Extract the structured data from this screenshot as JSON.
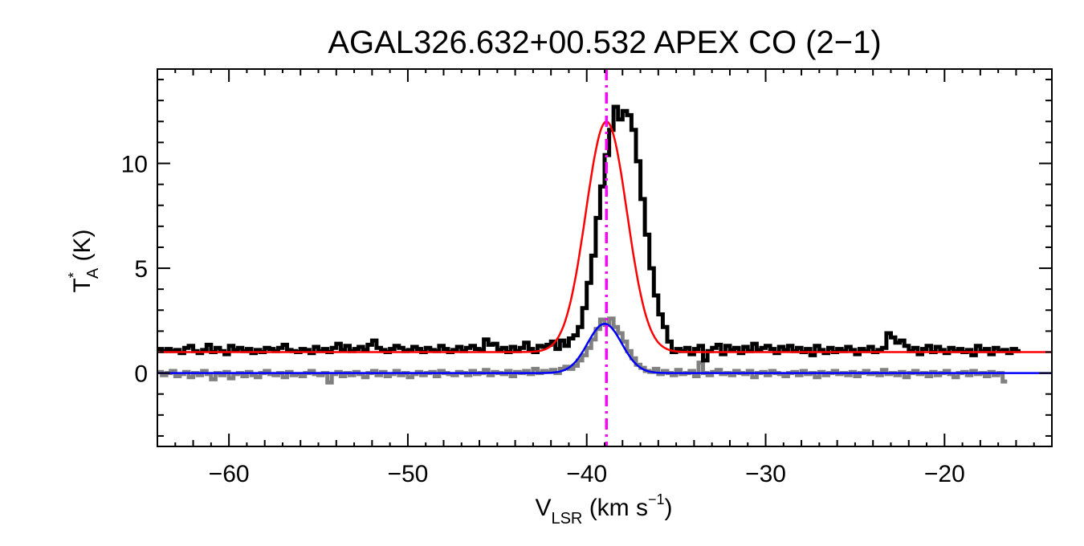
{
  "chart_data": {
    "type": "line",
    "title": "AGAL326.632+00.532  APEX CO (2−1)",
    "xlabel": {
      "main": "V",
      "sub": "LSR",
      "unit_pre": " (km s",
      "sup": "−1",
      "unit_post": ")"
    },
    "ylabel": {
      "main": "T",
      "sup": "*",
      "sub": "A",
      "unit": " (K)"
    },
    "xlim": [
      -64,
      -14
    ],
    "ylim": [
      -3.5,
      14.5
    ],
    "x_ticks": [
      -60,
      -50,
      -40,
      -30,
      -20
    ],
    "x_tick_labels": [
      "−60",
      "−50",
      "−40",
      "−30",
      "−20"
    ],
    "y_ticks": [
      0,
      5,
      10
    ],
    "y_tick_labels": [
      "0",
      "5",
      "10"
    ],
    "grid": false,
    "vline": {
      "x": -38.9,
      "color": "#ff00ff",
      "style": "dash-dot"
    },
    "series": [
      {
        "kind": "step",
        "color": "#000000",
        "baseline": 1.0,
        "x_start": -64,
        "x_step": 0.25,
        "peak_center": -38.9,
        "peak_amp": 11.3,
        "peak_sigma": 1.2,
        "values": [
          1.15,
          1.05,
          1.15,
          1.05,
          1.1,
          0.95,
          1.2,
          1.3,
          1.05,
          0.95,
          1.1,
          1.35,
          1.0,
          1.2,
          1.05,
          0.9,
          1.3,
          1.1,
          1.2,
          1.05,
          1.15,
          0.95,
          1.1,
          1.0,
          1.2,
          1.15,
          1.05,
          1.2,
          1.35,
          1.1,
          1.05,
          1.0,
          1.15,
          1.1,
          0.95,
          1.25,
          1.05,
          1.15,
          1.0,
          1.2,
          1.4,
          1.1,
          1.3,
          1.05,
          1.15,
          1.25,
          1.1,
          1.35,
          1.55,
          1.2,
          1.1,
          1.0,
          1.15,
          1.3,
          1.2,
          1.05,
          1.1,
          1.25,
          1.15,
          1.0,
          1.2,
          1.1,
          1.05,
          1.3,
          1.15,
          1.0,
          1.1,
          1.25,
          1.05,
          1.2,
          1.3,
          1.15,
          1.1,
          1.6,
          1.35,
          1.4,
          1.1,
          1.2,
          1.0,
          1.25,
          1.05,
          1.2,
          1.45,
          1.15,
          1.0,
          1.3,
          1.25,
          1.35,
          1.5,
          1.15,
          1.55,
          1.3,
          1.65,
          1.8,
          2.2,
          3.1,
          4.3,
          5.6,
          7.4,
          8.9,
          10.4,
          11.6,
          12.7,
          12.1,
          12.5,
          12.3,
          11.6,
          10.1,
          8.3,
          6.6,
          5.0,
          3.7,
          2.8,
          2.2,
          1.5,
          1.0,
          1.15,
          1.05,
          1.2,
          0.9,
          1.15,
          1.3,
          0.6,
          1.05,
          1.2,
          1.35,
          0.9,
          1.3,
          1.1,
          1.2,
          0.95,
          1.25,
          1.05,
          1.4,
          1.1,
          1.2,
          1.3,
          1.15,
          0.95,
          1.25,
          1.1,
          1.3,
          1.05,
          1.2,
          1.0,
          1.15,
          0.85,
          1.3,
          1.1,
          0.95,
          1.2,
          1.0,
          1.15,
          1.05,
          1.25,
          1.1,
          0.9,
          1.15,
          1.05,
          1.25,
          1.0,
          1.1,
          1.2,
          1.9,
          1.7,
          1.45,
          1.55,
          1.3,
          1.05,
          1.2,
          0.9,
          1.15,
          1.3,
          1.0,
          1.25,
          1.1,
          0.95,
          1.2,
          1.05,
          1.15,
          1.0,
          1.1,
          0.85,
          1.3,
          1.05,
          1.15,
          0.9,
          1.2,
          1.05,
          1.1,
          0.95,
          1.15,
          1.05
        ]
      },
      {
        "kind": "step",
        "color": "#808080",
        "baseline": 0.0,
        "x_start": -64,
        "x_step": 0.25,
        "peak_center": -38.9,
        "peak_amp": 2.1,
        "peak_sigma": 1.0,
        "values": [
          0.05,
          -0.1,
          0.0,
          0.1,
          -0.15,
          -0.05,
          0.05,
          -0.2,
          0.0,
          -0.1,
          0.1,
          -0.05,
          -0.3,
          0.0,
          -0.1,
          0.05,
          -0.25,
          -0.05,
          0.0,
          -0.15,
          0.05,
          -0.1,
          -0.2,
          0.0,
          0.1,
          -0.05,
          -0.1,
          0.0,
          -0.2,
          0.05,
          -0.1,
          -0.05,
          -0.15,
          0.0,
          0.1,
          -0.05,
          -0.1,
          0.0,
          -0.45,
          -0.05,
          0.05,
          -0.15,
          0.0,
          -0.1,
          0.05,
          -0.05,
          -0.2,
          0.0,
          0.1,
          -0.1,
          0.05,
          -0.15,
          -0.05,
          0.1,
          -0.1,
          0.0,
          -0.2,
          -0.05,
          0.05,
          -0.1,
          0.0,
          0.05,
          -0.15,
          0.1,
          0.0,
          -0.05,
          -0.1,
          0.05,
          0.0,
          -0.1,
          0.1,
          -0.05,
          0.0,
          0.15,
          -0.1,
          0.05,
          0.0,
          -0.05,
          0.1,
          -0.15,
          0.05,
          0.0,
          0.1,
          -0.05,
          0.2,
          0.0,
          0.1,
          0.05,
          0.15,
          0.0,
          0.2,
          0.3,
          0.2,
          0.35,
          0.6,
          0.85,
          1.2,
          1.6,
          2.1,
          2.55,
          2.3,
          2.6,
          2.2,
          1.9,
          1.5,
          1.05,
          0.7,
          0.4,
          0.25,
          0.1,
          0.05,
          0.2,
          -0.05,
          0.1,
          0.0,
          -0.1,
          0.15,
          -0.05,
          0.0,
          0.1,
          -0.15,
          0.5,
          0.0,
          -0.1,
          0.05,
          0.15,
          -0.05,
          0.0,
          -0.1,
          0.1,
          0.0,
          -0.05,
          0.1,
          -0.2,
          0.0,
          0.05,
          -0.1,
          0.1,
          0.0,
          -0.05,
          -0.15,
          0.0,
          0.05,
          -0.1,
          0.1,
          -0.05,
          0.0,
          -0.2,
          0.05,
          -0.1,
          0.0,
          0.1,
          -0.05,
          0.0,
          -0.1,
          0.05,
          -0.15,
          0.0,
          0.1,
          -0.05,
          0.0,
          -0.1,
          0.15,
          -0.05,
          0.0,
          -0.1,
          0.05,
          -0.2,
          0.0,
          0.1,
          -0.05,
          0.0,
          -0.15,
          0.05,
          -0.1,
          0.0,
          0.1,
          -0.05,
          -0.2,
          0.0,
          0.05,
          -0.1,
          0.1,
          -0.05,
          0.0,
          -0.15,
          0.05,
          -0.1,
          0.0,
          -0.4
        ]
      },
      {
        "kind": "gaussian",
        "color": "#ff0000",
        "baseline": 1.0,
        "center": -38.9,
        "amp": 11.0,
        "sigma": 1.15
      },
      {
        "kind": "gaussian",
        "color": "#0000ff",
        "baseline": 0.0,
        "center": -39.0,
        "amp": 2.35,
        "sigma": 0.95
      }
    ]
  }
}
